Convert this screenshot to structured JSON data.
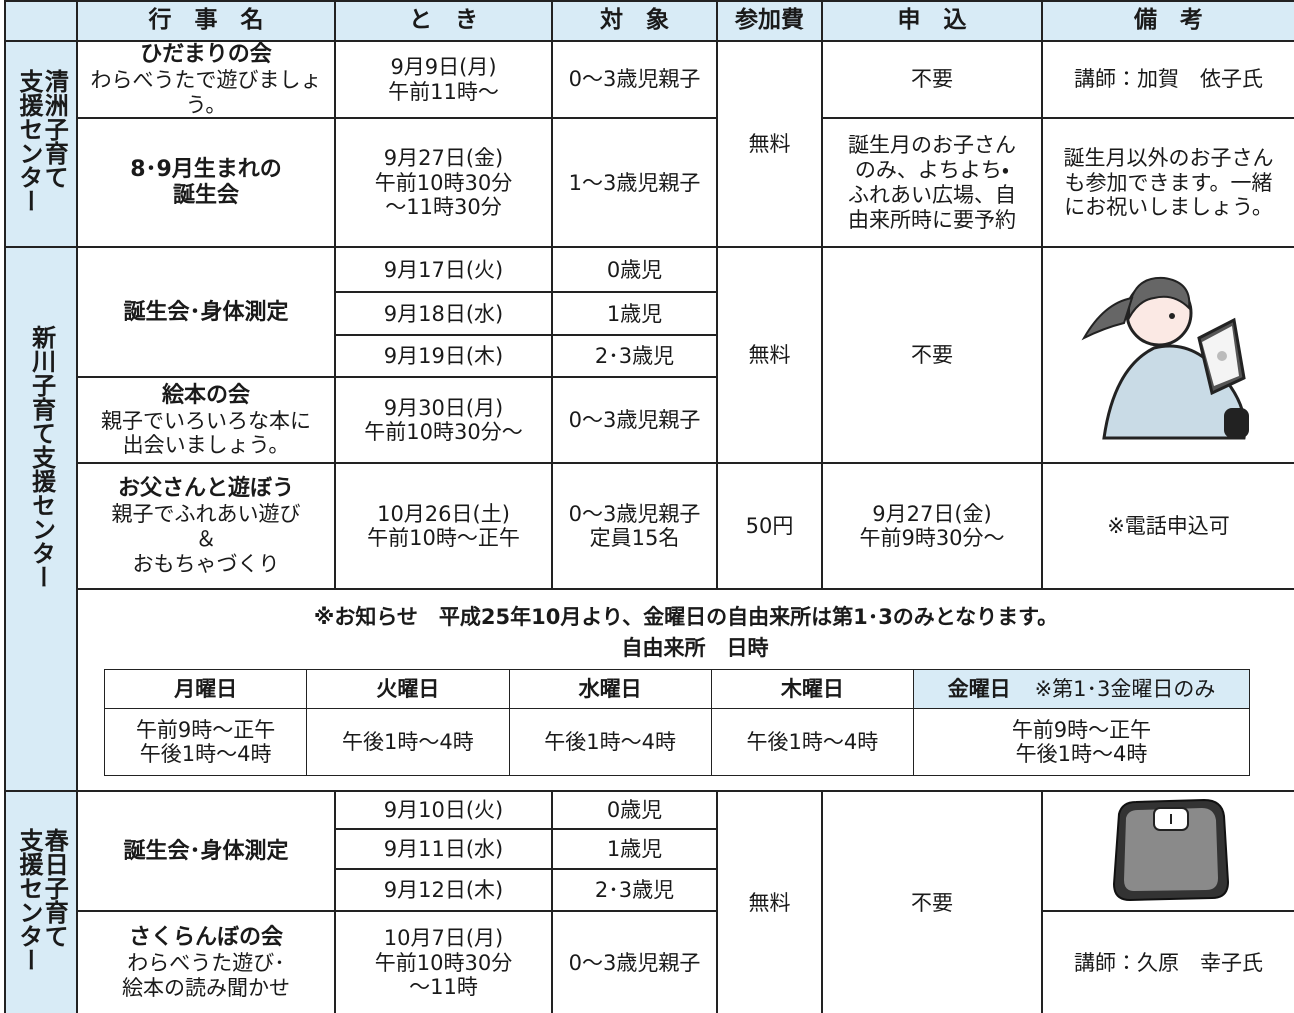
{
  "header": [
    "行　事　名",
    "と　き",
    "対　象",
    "参加費",
    "申　込",
    "備　考"
  ],
  "sections": [
    {
      "label": [
        "清洲子育て",
        "支援センター"
      ],
      "fee": "無料",
      "hidamari": {
        "name": "ひだまりの会",
        "desc": "わらべうたで遊びましょう。",
        "when": [
          "9月9日(月)",
          "午前11時～"
        ],
        "target": "0～3歳児親子",
        "apply": "不要",
        "note": "講師：加賀　依子氏"
      },
      "birthday": {
        "name": [
          "8･9月生まれの",
          "誕生会"
        ],
        "when": [
          "9月27日(金)",
          "午前10時30分",
          "～11時30分"
        ],
        "target": "1～3歳児親子",
        "apply": [
          "誕生月のお子さん",
          "のみ、よちよち・",
          "ふれあい広場、自",
          "由来所時に要予約"
        ],
        "note": [
          "誕生月以外のお子さん",
          "も参加できます。一緒",
          "にお祝いしましょう。"
        ]
      }
    },
    {
      "label": "新川子育て支援センター",
      "fee": "無料",
      "apply": "不要",
      "birthday": {
        "name": "誕生会･身体測定",
        "sessions": [
          {
            "when": "9月17日(火)",
            "target": "0歳児"
          },
          {
            "when": "9月18日(水)",
            "target": "1歳児"
          },
          {
            "when": "9月19日(木)",
            "target": "2･3歳児"
          }
        ]
      },
      "ehon": {
        "name": "絵本の会",
        "desc": [
          "親子でいろいろな本に",
          "出会いましょう。"
        ],
        "when": [
          "9月30日(月)",
          "午前10時30分～"
        ],
        "target": "0～3歳児親子"
      },
      "father": {
        "name": "お父さんと遊ぼう",
        "desc": [
          "親子でふれあい遊び",
          "＆",
          "おもちゃづくり"
        ],
        "when": [
          "10月26日(土)",
          "午前10時～正午"
        ],
        "target": [
          "0～3歳児親子",
          "定員15名"
        ],
        "fee": "50円",
        "apply": [
          "9月27日(金)",
          "午前9時30分～"
        ],
        "note": "※電話申込可"
      },
      "notice": {
        "text": "※お知らせ　平成25年10月より、金曜日の自由来所は第1･3のみとなります。",
        "subtitle": "自由来所　日時",
        "days": [
          "月曜日",
          "火曜日",
          "水曜日",
          "木曜日",
          "金曜日"
        ],
        "friday_note": "※第1･3金曜日のみ",
        "times": [
          [
            "午前9時～正午",
            "午後1時～4時"
          ],
          "午後1時～4時",
          "午後1時～4時",
          "午後1時～4時",
          [
            "午前9時～正午",
            "午後1時～4時"
          ]
        ]
      }
    },
    {
      "label": [
        "春日子育て",
        "支援センター"
      ],
      "fee": "無料",
      "apply": "不要",
      "birthday": {
        "name": "誕生会･身体測定",
        "sessions": [
          {
            "when": "9月10日(火)",
            "target": "0歳児"
          },
          {
            "when": "9月11日(水)",
            "target": "1歳児"
          },
          {
            "when": "9月12日(木)",
            "target": "2･3歳児"
          }
        ]
      },
      "sakuranbo": {
        "name": "さくらんぼの会",
        "desc": [
          "わらべうた遊び･",
          "絵本の読み聞かせ"
        ],
        "when": [
          "10月7日(月)",
          "午前10時30分",
          "～11時"
        ],
        "target": "0～3歳児親子",
        "note": "講師：久原　幸子氏"
      }
    }
  ]
}
